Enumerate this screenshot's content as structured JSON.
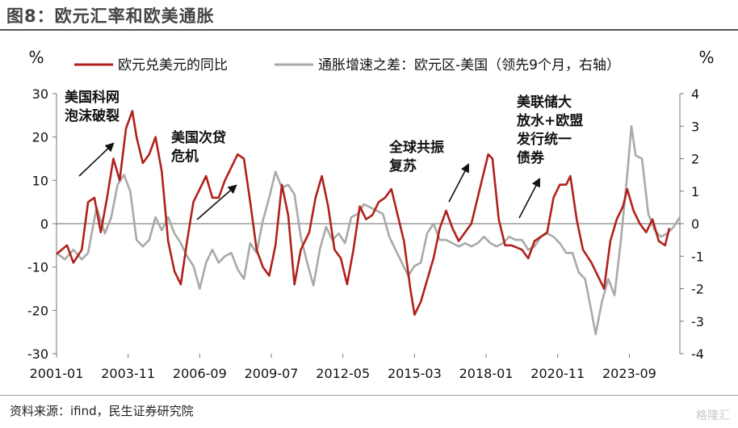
{
  "title": "图8：欧元汇率和欧美通胀",
  "source": "资料来源：ifind，民生证券研究院",
  "watermark": "格隆汇",
  "chart_data": {
    "type": "line",
    "left_unit": "%",
    "right_unit": "%",
    "left_ylim": [
      -30,
      30
    ],
    "left_ticks": [
      -30,
      -20,
      -10,
      0,
      10,
      20,
      30
    ],
    "right_ylim": [
      -4,
      4
    ],
    "right_ticks": [
      -4,
      -3,
      -2,
      -1,
      0,
      1,
      2,
      3,
      4
    ],
    "x_range": [
      "2001-01",
      "2025-09"
    ],
    "x_ticks": [
      "2001-01",
      "2003-11",
      "2006-09",
      "2009-07",
      "2012-05",
      "2015-03",
      "2018-01",
      "2020-11",
      "2023-09"
    ],
    "legend_position": "top",
    "series": [
      {
        "name": "欧元兑美元的同比",
        "axis": "left",
        "color": "#b0211c",
        "points": [
          [
            "2001-01",
            -7
          ],
          [
            "2001-06",
            -5
          ],
          [
            "2001-09",
            -9
          ],
          [
            "2002-01",
            -6
          ],
          [
            "2002-04",
            5
          ],
          [
            "2002-07",
            6
          ],
          [
            "2002-10",
            -2
          ],
          [
            "2003-01",
            6
          ],
          [
            "2003-04",
            15
          ],
          [
            "2003-07",
            10
          ],
          [
            "2003-10",
            22
          ],
          [
            "2004-01",
            26
          ],
          [
            "2004-03",
            20
          ],
          [
            "2004-06",
            14
          ],
          [
            "2004-09",
            16
          ],
          [
            "2004-12",
            20
          ],
          [
            "2005-03",
            12
          ],
          [
            "2005-06",
            -4
          ],
          [
            "2005-09",
            -11
          ],
          [
            "2005-12",
            -14
          ],
          [
            "2006-03",
            -4
          ],
          [
            "2006-06",
            5
          ],
          [
            "2006-09",
            8
          ],
          [
            "2006-12",
            11
          ],
          [
            "2007-03",
            6
          ],
          [
            "2007-06",
            6
          ],
          [
            "2007-09",
            10
          ],
          [
            "2007-12",
            13
          ],
          [
            "2008-03",
            16
          ],
          [
            "2008-06",
            15
          ],
          [
            "2008-09",
            5
          ],
          [
            "2008-12",
            -6
          ],
          [
            "2009-03",
            -10
          ],
          [
            "2009-06",
            -12
          ],
          [
            "2009-09",
            -5
          ],
          [
            "2009-12",
            9
          ],
          [
            "2010-03",
            2
          ],
          [
            "2010-06",
            -14
          ],
          [
            "2010-09",
            -6
          ],
          [
            "2011-01",
            -2
          ],
          [
            "2011-04",
            6
          ],
          [
            "2011-07",
            11
          ],
          [
            "2011-10",
            4
          ],
          [
            "2012-01",
            -6
          ],
          [
            "2012-04",
            -8
          ],
          [
            "2012-07",
            -14
          ],
          [
            "2012-10",
            -6
          ],
          [
            "2013-01",
            4
          ],
          [
            "2013-04",
            1
          ],
          [
            "2013-07",
            2
          ],
          [
            "2013-10",
            5
          ],
          [
            "2014-01",
            6
          ],
          [
            "2014-04",
            8
          ],
          [
            "2014-07",
            2
          ],
          [
            "2014-10",
            -4
          ],
          [
            "2015-01",
            -15
          ],
          [
            "2015-03",
            -21
          ],
          [
            "2015-06",
            -18
          ],
          [
            "2015-09",
            -13
          ],
          [
            "2015-12",
            -8
          ],
          [
            "2016-03",
            -1
          ],
          [
            "2016-06",
            3
          ],
          [
            "2016-09",
            -1
          ],
          [
            "2016-12",
            -4
          ],
          [
            "2017-03",
            -2
          ],
          [
            "2017-06",
            0
          ],
          [
            "2017-09",
            6
          ],
          [
            "2017-12",
            12
          ],
          [
            "2018-02",
            16
          ],
          [
            "2018-04",
            15
          ],
          [
            "2018-07",
            1
          ],
          [
            "2018-10",
            -5
          ],
          [
            "2019-01",
            -5
          ],
          [
            "2019-06",
            -6
          ],
          [
            "2019-09",
            -8
          ],
          [
            "2019-12",
            -4
          ],
          [
            "2020-03",
            -3
          ],
          [
            "2020-06",
            -2
          ],
          [
            "2020-09",
            6
          ],
          [
            "2020-12",
            9
          ],
          [
            "2021-03",
            9
          ],
          [
            "2021-05",
            11
          ],
          [
            "2021-08",
            1
          ],
          [
            "2021-11",
            -6
          ],
          [
            "2022-03",
            -9
          ],
          [
            "2022-06",
            -12
          ],
          [
            "2022-09",
            -15
          ],
          [
            "2022-12",
            -4
          ],
          [
            "2023-03",
            1
          ],
          [
            "2023-06",
            4
          ],
          [
            "2023-08",
            8
          ],
          [
            "2023-11",
            3
          ],
          [
            "2024-02",
            0
          ],
          [
            "2024-05",
            -2
          ],
          [
            "2024-08",
            1
          ],
          [
            "2024-11",
            -4
          ],
          [
            "2025-02",
            -5
          ],
          [
            "2025-04",
            -1
          ]
        ]
      },
      {
        "name": "通胀增速之差：欧元区-美国（领先9个月，右轴）",
        "axis": "right",
        "color": "#a9a9a9",
        "points": [
          [
            "2001-01",
            -0.9
          ],
          [
            "2001-05",
            -1.1
          ],
          [
            "2001-09",
            -0.8
          ],
          [
            "2002-01",
            -1.1
          ],
          [
            "2002-04",
            -0.9
          ],
          [
            "2002-08",
            0.5
          ],
          [
            "2002-12",
            -0.3
          ],
          [
            "2003-03",
            0.2
          ],
          [
            "2003-06",
            1.2
          ],
          [
            "2003-09",
            1.5
          ],
          [
            "2003-12",
            1.0
          ],
          [
            "2004-03",
            -0.5
          ],
          [
            "2004-06",
            -0.7
          ],
          [
            "2004-09",
            -0.5
          ],
          [
            "2004-12",
            0.2
          ],
          [
            "2005-03",
            -0.2
          ],
          [
            "2005-06",
            0.2
          ],
          [
            "2005-09",
            -0.3
          ],
          [
            "2005-12",
            -0.6
          ],
          [
            "2006-03",
            -1.0
          ],
          [
            "2006-06",
            -1.3
          ],
          [
            "2006-09",
            -2.0
          ],
          [
            "2006-12",
            -1.2
          ],
          [
            "2007-03",
            -0.8
          ],
          [
            "2007-06",
            -1.2
          ],
          [
            "2007-09",
            -1.0
          ],
          [
            "2007-12",
            -0.9
          ],
          [
            "2008-03",
            -1.4
          ],
          [
            "2008-06",
            -1.7
          ],
          [
            "2008-09",
            -0.6
          ],
          [
            "2008-12",
            -0.9
          ],
          [
            "2009-03",
            0.1
          ],
          [
            "2009-06",
            0.8
          ],
          [
            "2009-09",
            1.6
          ],
          [
            "2009-12",
            1.1
          ],
          [
            "2010-03",
            1.2
          ],
          [
            "2010-06",
            0.9
          ],
          [
            "2010-09",
            -0.4
          ],
          [
            "2010-12",
            -1.2
          ],
          [
            "2011-03",
            -1.9
          ],
          [
            "2011-06",
            -0.8
          ],
          [
            "2011-09",
            -0.1
          ],
          [
            "2011-12",
            -0.5
          ],
          [
            "2012-03",
            -0.3
          ],
          [
            "2012-06",
            -0.6
          ],
          [
            "2012-09",
            0.2
          ],
          [
            "2012-12",
            0.3
          ],
          [
            "2013-03",
            0.6
          ],
          [
            "2013-06",
            0.5
          ],
          [
            "2013-09",
            0.4
          ],
          [
            "2013-12",
            0.3
          ],
          [
            "2014-03",
            -0.4
          ],
          [
            "2014-06",
            -0.8
          ],
          [
            "2014-09",
            -1.2
          ],
          [
            "2014-12",
            -1.6
          ],
          [
            "2015-03",
            -1.3
          ],
          [
            "2015-06",
            -1.2
          ],
          [
            "2015-09",
            -0.3
          ],
          [
            "2015-12",
            0.0
          ],
          [
            "2016-03",
            -0.5
          ],
          [
            "2016-06",
            -0.5
          ],
          [
            "2016-09",
            -0.6
          ],
          [
            "2016-12",
            -0.7
          ],
          [
            "2017-03",
            -0.6
          ],
          [
            "2017-06",
            -0.7
          ],
          [
            "2017-09",
            -0.6
          ],
          [
            "2017-12",
            -0.4
          ],
          [
            "2018-03",
            -0.6
          ],
          [
            "2018-06",
            -0.7
          ],
          [
            "2018-09",
            -0.6
          ],
          [
            "2018-12",
            -0.4
          ],
          [
            "2019-03",
            -0.5
          ],
          [
            "2019-06",
            -0.5
          ],
          [
            "2019-09",
            -0.8
          ],
          [
            "2019-12",
            -0.7
          ],
          [
            "2020-03",
            -0.4
          ],
          [
            "2020-06",
            -0.3
          ],
          [
            "2020-09",
            -0.4
          ],
          [
            "2020-12",
            -0.6
          ],
          [
            "2021-03",
            -0.9
          ],
          [
            "2021-06",
            -0.9
          ],
          [
            "2021-09",
            -1.5
          ],
          [
            "2021-12",
            -1.7
          ],
          [
            "2022-03",
            -2.7
          ],
          [
            "2022-05",
            -3.4
          ],
          [
            "2022-08",
            -2.4
          ],
          [
            "2022-11",
            -1.7
          ],
          [
            "2023-02",
            -2.2
          ],
          [
            "2023-05",
            -0.5
          ],
          [
            "2023-08",
            1.5
          ],
          [
            "2023-10",
            3.0
          ],
          [
            "2023-12",
            2.1
          ],
          [
            "2024-03",
            2.0
          ],
          [
            "2024-06",
            0.3
          ],
          [
            "2024-09",
            -0.2
          ],
          [
            "2024-12",
            -0.4
          ],
          [
            "2025-03",
            -0.3
          ],
          [
            "2025-06",
            -0.1
          ],
          [
            "2025-09",
            0.2
          ]
        ]
      }
    ],
    "annotations": [
      {
        "text": "美国科网泡沫破裂",
        "lines": [
          "美国科网",
          "泡沫破裂"
        ],
        "x": "2001-07",
        "y": 23
      },
      {
        "text": "美国次贷危机",
        "lines": [
          "美国次贷",
          "危机"
        ],
        "x": "2006-07",
        "y": 14
      },
      {
        "text": "全球共振复苏",
        "lines": [
          "全球共振",
          "复苏"
        ],
        "x": "2015-09",
        "y": 12
      },
      {
        "text": "美联储大放水+欧盟发行统一债券",
        "lines": [
          "美联储大",
          "放水+欧盟",
          "发行统一",
          "债券"
        ],
        "x": "2020-04",
        "y": 22
      }
    ]
  }
}
